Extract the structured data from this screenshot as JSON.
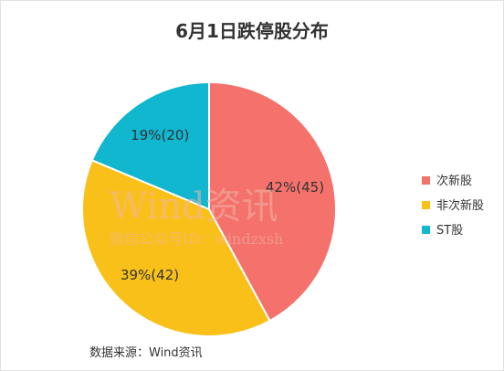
{
  "title": "6月1日跌停股分布",
  "chart_data": {
    "type": "pie",
    "title": "6月1日跌停股分布",
    "slices": [
      {
        "label": "次新股",
        "value": 45,
        "percent": 42,
        "display": "42%(45)",
        "color": "#f4716c"
      },
      {
        "label": "非次新股",
        "value": 42,
        "percent": 39,
        "display": "39%(42)",
        "color": "#f9c019"
      },
      {
        "label": "ST股",
        "value": 20,
        "percent": 19,
        "display": "19%(20)",
        "color": "#11b6cf"
      }
    ],
    "start_angle": "12 o'clock",
    "direction": "clockwise",
    "legend_position": "right"
  },
  "watermark": {
    "logo": "Wind资讯",
    "sub": "微信公众号ID：windzxsh"
  },
  "source": "数据来源：Wind资讯"
}
